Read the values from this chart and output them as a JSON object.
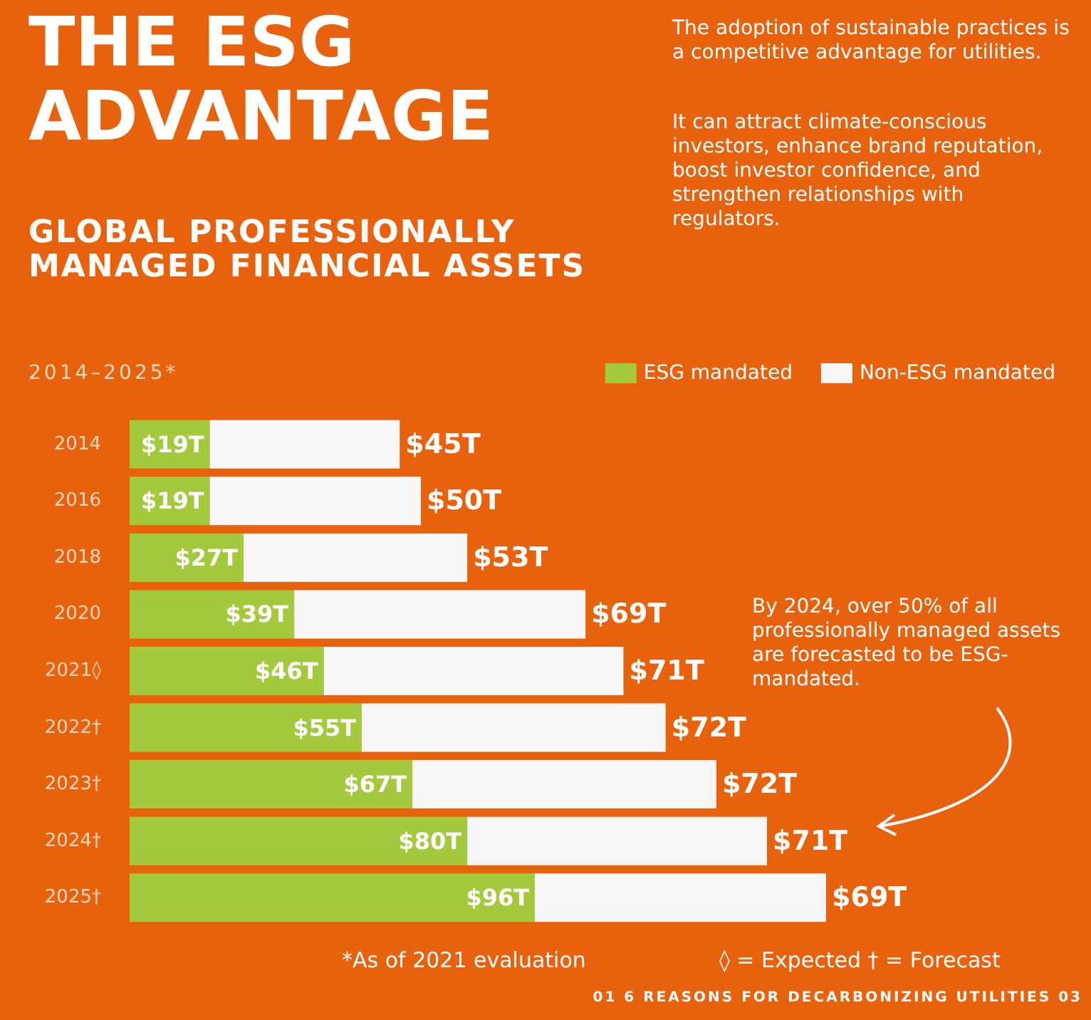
{
  "chart_data": {
    "type": "bar",
    "orientation": "horizontal",
    "stacked": true,
    "title": "THE ESG ADVANTAGE",
    "subtitle": "GLOBAL PROFESSIONALLY MANAGED FINANCIAL ASSETS",
    "categories": [
      "2014",
      "2016",
      "2018",
      "2020",
      "2021◊",
      "2022†",
      "2023†",
      "2024†",
      "2025†"
    ],
    "series": [
      {
        "name": "ESG mandated",
        "color": "#a4c93c",
        "values": [
          19,
          19,
          27,
          39,
          46,
          55,
          67,
          80,
          96
        ],
        "value_labels": [
          "$19T",
          "$19T",
          "$27T",
          "$39T",
          "$46T",
          "$55T",
          "$67T",
          "$80T",
          "$96T"
        ]
      },
      {
        "name": "Non-ESG mandated",
        "color": "#f7f7f7",
        "values": [
          45,
          50,
          53,
          69,
          71,
          72,
          72,
          71,
          69
        ],
        "value_labels": [
          "$45T",
          "$50T",
          "$53T",
          "$69T",
          "$71T",
          "$72T",
          "$72T",
          "$71T",
          "$69T"
        ]
      }
    ],
    "legend": "top right",
    "annotations": [
      "The adoption of sustainable practices is a competitive advantage for utilities.",
      "It can attract climate-conscious investors, enhance brand reputation, boost investor confidence, and strengthen relationships with regulators.",
      "2014–2025*",
      "By 2024, over 50% of all professionally managed assets are forecasted to be ESG-mandated.",
      "*As of 2021 evaluation",
      "◊ = Expected   † = Forecast",
      "01 6 REASONS FOR DECARBONIZING UTILITIES 03"
    ]
  }
}
